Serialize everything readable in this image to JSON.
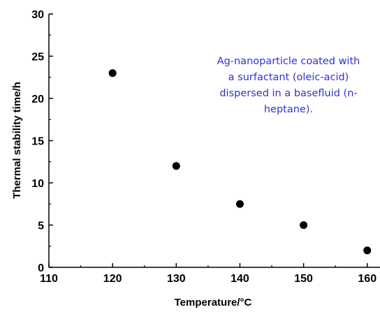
{
  "chart_data": {
    "type": "scatter",
    "title": "",
    "xlabel": "Temperature/°C",
    "ylabel": "Thermal stability time/h",
    "xlim": [
      110,
      162
    ],
    "ylim": [
      0,
      30
    ],
    "x_ticks": [
      110,
      120,
      130,
      140,
      150,
      160
    ],
    "y_ticks": [
      0,
      5,
      10,
      15,
      20,
      25,
      30
    ],
    "grid": false,
    "series": [
      {
        "x": [
          120,
          130,
          140,
          150,
          160
        ],
        "y": [
          23,
          12,
          7.5,
          5,
          2
        ],
        "marker": "filled-circle",
        "color": "#000000"
      }
    ],
    "annotation": {
      "lines": [
        "Ag-nanoparticle coated with",
        "a surfactant (oleic-acid)",
        "dispersed in a basefluid (n-",
        "heptane)."
      ],
      "color": "#3333cc"
    }
  }
}
